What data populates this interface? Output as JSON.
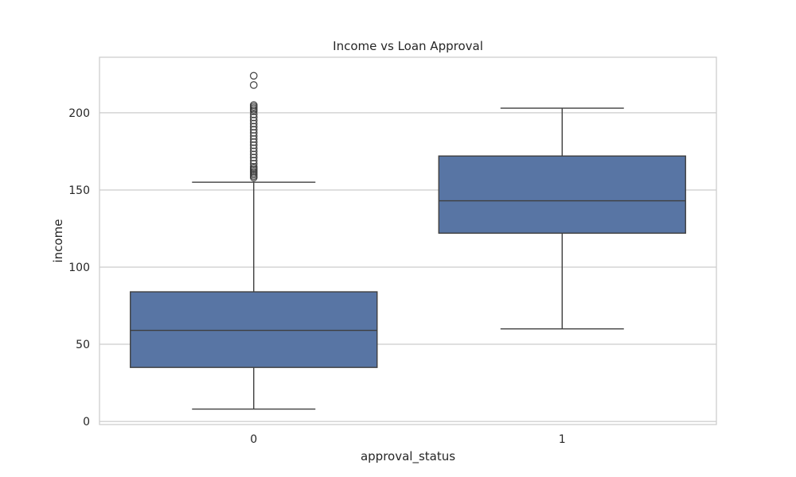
{
  "chart_data": {
    "type": "box",
    "title": "Income vs Loan Approval",
    "xlabel": "approval_status",
    "ylabel": "income",
    "categories": [
      "0",
      "1"
    ],
    "ylim": [
      -2,
      236
    ],
    "yticks": [
      0,
      50,
      100,
      150,
      200
    ],
    "grid": true,
    "box_color": "#5875a4",
    "line_color": "#3f3f3f",
    "grid_color": "#cccccc",
    "boxes": [
      {
        "category": "0",
        "whisker_low": 8,
        "q1": 35,
        "median": 59,
        "q3": 84,
        "whisker_high": 155,
        "outliers": [
          158,
          159,
          160,
          161,
          162,
          163,
          164,
          165,
          167,
          169,
          171,
          173,
          175,
          177,
          179,
          181,
          183,
          185,
          187,
          189,
          191,
          193,
          195,
          197,
          199,
          201,
          202,
          203,
          204,
          205,
          218,
          224
        ]
      },
      {
        "category": "1",
        "whisker_low": 60,
        "q1": 122,
        "median": 143,
        "q3": 172,
        "whisker_high": 203,
        "outliers": []
      }
    ]
  }
}
